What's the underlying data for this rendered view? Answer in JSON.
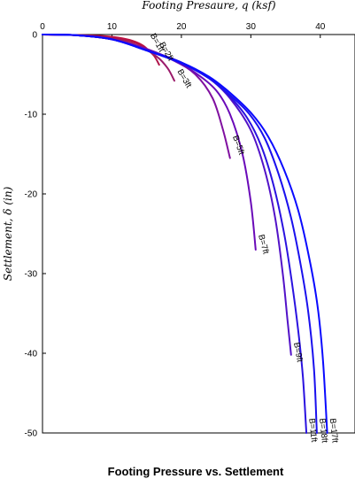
{
  "chart_data": {
    "type": "line",
    "title": "Footing Pressure vs. Settlement",
    "xlabel": "Footing Presaure, q (ksf)",
    "ylabel": "Settlement, δ (in)",
    "xlim": [
      0,
      45
    ],
    "ylim": [
      -50,
      0
    ],
    "xticks": [
      0,
      10,
      20,
      30,
      40
    ],
    "yticks": [
      0,
      -10,
      -20,
      -30,
      -40,
      -50
    ],
    "x_axis_position": "top",
    "grid": false,
    "series": [
      {
        "name": "B=1ft",
        "color": "#c0103f",
        "points": [
          [
            0,
            0
          ],
          [
            4,
            -0.05
          ],
          [
            8,
            -0.15
          ],
          [
            11,
            -0.4
          ],
          [
            13,
            -0.8
          ],
          [
            14.5,
            -1.4
          ],
          [
            15.5,
            -2.2
          ]
        ]
      },
      {
        "name": "B=2ft",
        "color": "#b0154a",
        "points": [
          [
            0,
            0
          ],
          [
            4,
            -0.05
          ],
          [
            8,
            -0.2
          ],
          [
            12,
            -0.7
          ],
          [
            14.5,
            -1.5
          ],
          [
            16,
            -2.6
          ],
          [
            16.8,
            -3.8
          ]
        ]
      },
      {
        "name": "B=3ft",
        "color": "#9a1a6a",
        "points": [
          [
            0,
            0
          ],
          [
            5,
            -0.1
          ],
          [
            10,
            -0.5
          ],
          [
            14,
            -1.5
          ],
          [
            16.5,
            -2.8
          ],
          [
            18,
            -4.2
          ],
          [
            19,
            -5.8
          ]
        ]
      },
      {
        "name": "B=5ft",
        "color": "#8010a0",
        "points": [
          [
            0,
            0
          ],
          [
            5,
            -0.1
          ],
          [
            10,
            -0.6
          ],
          [
            15,
            -1.8
          ],
          [
            19,
            -3.3
          ],
          [
            22,
            -5
          ],
          [
            24.5,
            -8
          ],
          [
            26,
            -12
          ],
          [
            27,
            -15.5
          ]
        ]
      },
      {
        "name": "B=7ft",
        "color": "#6a0ab8",
        "points": [
          [
            0,
            0
          ],
          [
            5,
            -0.1
          ],
          [
            10,
            -0.6
          ],
          [
            15,
            -1.9
          ],
          [
            19,
            -3.3
          ],
          [
            22,
            -4.8
          ],
          [
            25,
            -7
          ],
          [
            27,
            -10
          ],
          [
            28.8,
            -15
          ],
          [
            30,
            -21
          ],
          [
            30.7,
            -27
          ]
        ]
      },
      {
        "name": "B=9ft",
        "color": "#5212c8",
        "points": [
          [
            0,
            0
          ],
          [
            5,
            -0.1
          ],
          [
            10,
            -0.6
          ],
          [
            15,
            -1.9
          ],
          [
            20,
            -3.5
          ],
          [
            24,
            -5.5
          ],
          [
            27,
            -8
          ],
          [
            30,
            -12
          ],
          [
            32,
            -17
          ],
          [
            33.5,
            -23
          ],
          [
            34.6,
            -30
          ],
          [
            35.3,
            -36
          ],
          [
            35.8,
            -40.2
          ]
        ]
      },
      {
        "name": "B=11ft",
        "color": "#2a12e0",
        "points": [
          [
            0,
            0
          ],
          [
            5,
            -0.1
          ],
          [
            10,
            -0.6
          ],
          [
            15,
            -2
          ],
          [
            20,
            -3.6
          ],
          [
            24,
            -5.5
          ],
          [
            27,
            -7.8
          ],
          [
            29.5,
            -10.5
          ],
          [
            31.5,
            -14
          ],
          [
            33.3,
            -19
          ],
          [
            34.8,
            -25
          ],
          [
            35.9,
            -31
          ],
          [
            36.8,
            -37
          ],
          [
            37.5,
            -43
          ],
          [
            38,
            -50
          ]
        ]
      },
      {
        "name": "B=18ft",
        "color": "#1a10ee",
        "points": [
          [
            0,
            0
          ],
          [
            5,
            -0.1
          ],
          [
            10,
            -0.6
          ],
          [
            15,
            -2
          ],
          [
            20,
            -3.6
          ],
          [
            24,
            -5.5
          ],
          [
            27,
            -7.6
          ],
          [
            29.8,
            -10
          ],
          [
            32,
            -13
          ],
          [
            34,
            -17.5
          ],
          [
            35.8,
            -23
          ],
          [
            37.2,
            -29
          ],
          [
            38.3,
            -35
          ],
          [
            39.1,
            -42
          ],
          [
            39.5,
            -50
          ]
        ]
      },
      {
        "name": "B=17ft",
        "color": "#0a0aff",
        "points": [
          [
            0,
            0
          ],
          [
            5,
            -0.1
          ],
          [
            10,
            -0.6
          ],
          [
            15,
            -2
          ],
          [
            20,
            -3.5
          ],
          [
            24,
            -5.3
          ],
          [
            27,
            -7.3
          ],
          [
            30,
            -9.8
          ],
          [
            32.5,
            -12.8
          ],
          [
            34.8,
            -17
          ],
          [
            36.8,
            -22
          ],
          [
            38.4,
            -28
          ],
          [
            39.6,
            -34
          ],
          [
            40.4,
            -41
          ],
          [
            41,
            -50
          ]
        ]
      }
    ],
    "curve_labels": [
      {
        "text": "B=1ft",
        "series": 0,
        "x": 15.5,
        "y": -0.1,
        "angle": 60
      },
      {
        "text": "B=2ft",
        "series": 1,
        "x": 16.8,
        "y": -1.2,
        "angle": 60
      },
      {
        "text": "B=3ft",
        "series": 2,
        "x": 19.4,
        "y": -4.6,
        "angle": 60
      },
      {
        "text": "B=5ft",
        "series": 3,
        "x": 27.4,
        "y": -12.8,
        "angle": 70
      },
      {
        "text": "B=7ft",
        "series": 4,
        "x": 31.1,
        "y": -25.2,
        "angle": 75
      },
      {
        "text": "B=9ft",
        "series": 5,
        "x": 36.2,
        "y": -38.7,
        "angle": 80
      },
      {
        "text": "B=11ft",
        "series": 6,
        "x": 38.4,
        "y": -48.2,
        "angle": 84
      },
      {
        "text": "B=18ft",
        "series": 7,
        "x": 39.9,
        "y": -48.2,
        "angle": 84
      },
      {
        "text": "B=17ft",
        "series": 8,
        "x": 41.4,
        "y": -48.2,
        "angle": 84
      }
    ]
  }
}
